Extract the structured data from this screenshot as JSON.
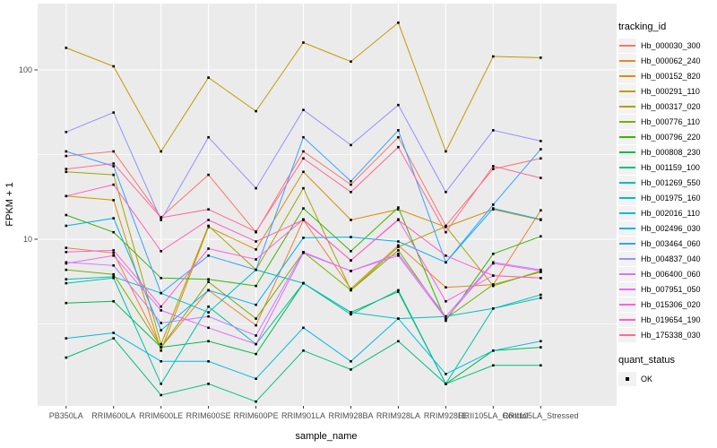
{
  "figure": {
    "background": "#FFFFFF",
    "panel_background": "#EBEBEB",
    "grid_color": "#FFFFFF",
    "axis_text_color": "#4D4D4D",
    "tick_color": "#333333",
    "point_color": "#000000",
    "legend_key_background": "#F2F2F2"
  },
  "chart_data": {
    "type": "line",
    "title": "",
    "xlabel": "sample_name",
    "ylabel": "FPKM + 1",
    "y_scale": "log10",
    "y_tick_labels": [
      "100",
      "10"
    ],
    "y_ticks": [
      100,
      10
    ],
    "y_minor_ticks": [
      31.6,
      3.16
    ],
    "ylim": [
      1.05,
      245
    ],
    "grid": "on",
    "legend_position": "right",
    "categories": [
      "PB350LA",
      "RRIM600LA",
      "RRIM600LE",
      "RRIM600SE",
      "RRIM600PE",
      "RRIM901LA",
      "RRIM928BA",
      "RRIM928LA",
      "RRIM928LE",
      "RRII105LA_Control",
      "RRII105LA_Stressed"
    ],
    "series": [
      {
        "name": "Hb_000030_300",
        "color": "#F8766D",
        "values": [
          31,
          33,
          13.5,
          24,
          11,
          33,
          21,
          40,
          12,
          26,
          30
        ]
      },
      {
        "name": "Hb_000062_240",
        "color": "#EA8331",
        "values": [
          8.9,
          8.3,
          2.3,
          5.0,
          3.1,
          13,
          5.1,
          9.2,
          5.2,
          5.4,
          14.8
        ]
      },
      {
        "name": "Hb_000152_820",
        "color": "#D89000",
        "values": [
          18,
          17,
          2.2,
          11.8,
          8.7,
          25,
          13,
          15,
          11.8,
          15,
          13
        ]
      },
      {
        "name": "Hb_000291_110",
        "color": "#C09B00",
        "values": [
          135,
          105,
          33,
          90,
          57,
          145,
          112,
          190,
          33,
          120,
          118
        ]
      },
      {
        "name": "Hb_000317_020",
        "color": "#A3A500",
        "values": [
          25,
          24,
          2.4,
          12,
          6.6,
          20,
          5,
          9,
          11.9,
          5.3,
          6.5
        ]
      },
      {
        "name": "Hb_000776_110",
        "color": "#7CAE00",
        "values": [
          6.6,
          6.2,
          2.3,
          5.6,
          3.4,
          8.4,
          5,
          8.6,
          3.4,
          5.4,
          6.4
        ]
      },
      {
        "name": "Hb_000796_220",
        "color": "#39B600",
        "values": [
          13.9,
          11,
          5.9,
          5.8,
          5.3,
          15.2,
          8.5,
          15.4,
          3.3,
          8.2,
          10.4
        ]
      },
      {
        "name": "Hb_000808_230",
        "color": "#00BB4E",
        "values": [
          4.2,
          4.3,
          2.3,
          2.5,
          2.1,
          5.5,
          3.7,
          4.9,
          1.4,
          2.2,
          2.3
        ]
      },
      {
        "name": "Hb_001159_100",
        "color": "#00BF7D",
        "values": [
          2.0,
          2.6,
          1.2,
          1.4,
          1.1,
          2.2,
          1.7,
          2.5,
          1.4,
          1.8,
          1.8
        ]
      },
      {
        "name": "Hb_001269_550",
        "color": "#00C1A3",
        "values": [
          5.5,
          5.9,
          1.4,
          4.0,
          2.4,
          5.5,
          3.6,
          5.0,
          1.4,
          3.9,
          4.5
        ]
      },
      {
        "name": "Hb_001975_160",
        "color": "#00BFC4",
        "values": [
          5.8,
          6.0,
          4.8,
          3.7,
          6.6,
          5.5,
          3.7,
          3.4,
          3.5,
          3.9,
          4.7
        ]
      },
      {
        "name": "Hb_002016_110",
        "color": "#00BAE0",
        "values": [
          2.6,
          2.8,
          1.9,
          1.9,
          1.5,
          3.0,
          1.9,
          3.4,
          1.6,
          2.2,
          2.5
        ]
      },
      {
        "name": "Hb_002496_030",
        "color": "#00B0F6",
        "values": [
          12,
          13.3,
          2.9,
          5.0,
          4.1,
          10.2,
          10.3,
          9.7,
          7.3,
          15.2,
          13.1
        ]
      },
      {
        "name": "Hb_003464_060",
        "color": "#35A2FF",
        "values": [
          33,
          27,
          4.8,
          8.0,
          6.6,
          40,
          22,
          44,
          7.3,
          16,
          34
        ]
      },
      {
        "name": "Hb_004837_040",
        "color": "#9590FF",
        "values": [
          43,
          56,
          13,
          40,
          20,
          58,
          36,
          62,
          19,
          44,
          38
        ]
      },
      {
        "name": "Hb_006400_060",
        "color": "#C77CFF",
        "values": [
          7.3,
          7.0,
          3.2,
          3.5,
          2.7,
          8.4,
          6.5,
          8.2,
          3.5,
          7.3,
          6.6
        ]
      },
      {
        "name": "Hb_007951_050",
        "color": "#E76BF3",
        "values": [
          7.2,
          8.0,
          3.8,
          3.0,
          2.4,
          8.3,
          6.5,
          8.0,
          3.4,
          7.2,
          6.5
        ]
      },
      {
        "name": "Hb_015306_020",
        "color": "#FA62DB",
        "values": [
          8.4,
          8.6,
          4.0,
          8.8,
          7.6,
          13.1,
          7.5,
          13.1,
          4.3,
          6.1,
          5.9
        ]
      },
      {
        "name": "Hb_019654_190",
        "color": "#FF62BC",
        "values": [
          18,
          21,
          8.5,
          13,
          9.7,
          13,
          7.5,
          13,
          8.0,
          6.1,
          5.9
        ]
      },
      {
        "name": "Hb_175338_030",
        "color": "#FF6A98",
        "values": [
          26,
          28,
          13.4,
          15,
          11.1,
          30,
          19,
          35,
          11,
          27,
          23
        ]
      }
    ],
    "legend": {
      "tracking_title": "tracking_id",
      "quant_title": "quant_status",
      "quant_items": [
        {
          "label": "OK",
          "marker": "black-square"
        }
      ]
    }
  }
}
